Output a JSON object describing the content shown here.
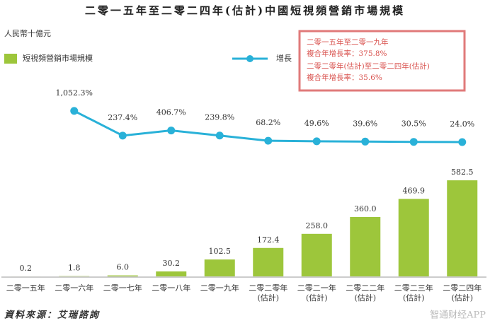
{
  "chart_data": {
    "type": "bar",
    "title": "二零一五年至二零二四年(估計)中國短視頻營銷市場規模",
    "unit_label": "人民幣十億元",
    "categories": [
      [
        "二零一五年"
      ],
      [
        "二零一六年"
      ],
      [
        "二零一七年"
      ],
      [
        "二零一八年"
      ],
      [
        "二零一九年"
      ],
      [
        "二零二零年",
        "(估計)"
      ],
      [
        "二零二一年",
        "(估計)"
      ],
      [
        "二零二二年",
        "(估計)"
      ],
      [
        "二零二三年",
        "(估計)"
      ],
      [
        "二零二四年",
        "(估計)"
      ]
    ],
    "series": [
      {
        "name": "短視頻營銷市場規模",
        "type": "bar",
        "color": "#9dc63b",
        "values": [
          0.2,
          1.8,
          6.0,
          30.2,
          102.5,
          172.4,
          258.0,
          360.0,
          469.9,
          582.5
        ],
        "value_labels": [
          "0.2",
          "1.8",
          "6.0",
          "30.2",
          "102.5",
          "172.4",
          "258.0",
          "360.0",
          "469.9",
          "582.5"
        ]
      },
      {
        "name": "增長",
        "type": "line",
        "axis": "y2",
        "color": "#29b1d8",
        "values": [
          null,
          1052.3,
          237.4,
          406.7,
          239.8,
          68.2,
          49.6,
          39.6,
          30.5,
          24.0
        ],
        "value_labels": [
          null,
          "1,052.3%",
          "237.4%",
          "406.7%",
          "239.8%",
          "68.2%",
          "49.6%",
          "39.6%",
          "30.5%",
          "24.0%"
        ]
      }
    ],
    "ylim": [
      0,
      600
    ],
    "y2lim": [
      0,
      1400
    ],
    "annotations": [
      "二零一五年至二零一九年",
      "複合年增長率：375.8%",
      "二零二零年(估計)至二零二四年(估計)",
      "複合年增長率：35.6%"
    ],
    "source": "資料來源：艾瑞諮詢",
    "watermark": "智通财经APP"
  }
}
